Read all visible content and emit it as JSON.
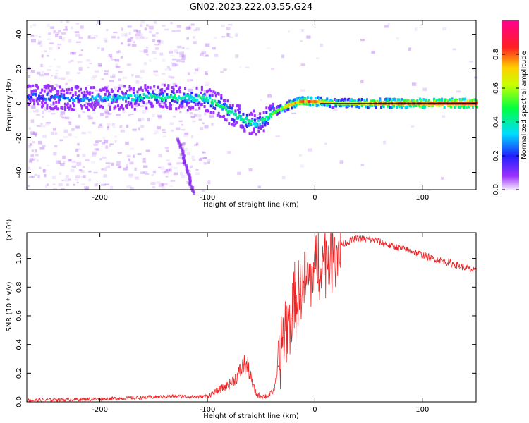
{
  "title": "GN02.2023.222.03.55.G24",
  "colors": {
    "snr_line": "#ee2222",
    "spectrum_track_high": "#ff2020",
    "spectrum_noise": "#8a2be2"
  },
  "chart_data": [
    {
      "type": "heatmap",
      "xlabel": "Height of straight line (km)",
      "ylabel": "Frequency (Hz)",
      "xlim": [
        -268,
        150
      ],
      "ylim": [
        -50,
        48
      ],
      "x_ticks": [
        "-200",
        "-100",
        "0",
        "100"
      ],
      "y_ticks": [
        "40",
        "20",
        "0",
        "-20",
        "-40"
      ],
      "colorbar": {
        "label": "Normalized spectral amplitude",
        "range": [
          0,
          1
        ],
        "ticks": [
          "0.0",
          "0.2",
          "0.4",
          "0.6",
          "0.8"
        ],
        "colormap": "rainbow (violet → blue → cyan → green → yellow → red → magenta)"
      },
      "dominant_frequency_track": {
        "x": [
          -268,
          -220,
          -180,
          -150,
          -120,
          -105,
          -95,
          -85,
          -75,
          -65,
          -55,
          -45,
          -35,
          -25,
          -15,
          -5,
          0,
          20,
          50,
          100,
          150
        ],
        "y": [
          4,
          3,
          3,
          4,
          3,
          3,
          1,
          -3,
          -7,
          -10,
          -12,
          -8,
          -4,
          -1,
          1,
          1,
          1,
          0,
          0,
          0,
          0
        ],
        "amplitude": [
          0.2,
          0.25,
          0.35,
          0.4,
          0.4,
          0.4,
          0.45,
          0.45,
          0.4,
          0.45,
          0.35,
          0.45,
          0.55,
          0.7,
          0.75,
          0.8,
          0.75,
          0.6,
          0.75,
          0.85,
          0.9
        ]
      },
      "grid": false
    },
    {
      "type": "line",
      "xlabel": "Height of straight line (km)",
      "ylabel": "SNR (10 * v/v)",
      "y_multiplier": "(x10⁴)",
      "xlim": [
        -268,
        150
      ],
      "ylim": [
        0,
        1.18
      ],
      "x_ticks": [
        "-200",
        "-100",
        "0",
        "100"
      ],
      "y_ticks": [
        "0.0",
        "0.2",
        "0.4",
        "0.6",
        "0.8",
        "1.0"
      ],
      "series": [
        {
          "x": [
            -268,
            -240,
            -200,
            -160,
            -130,
            -110,
            -100,
            -90,
            -80,
            -72,
            -66,
            -62,
            -58,
            -54,
            -50,
            -46,
            -42,
            -38,
            -34,
            -30,
            -26,
            -22,
            -18,
            -14,
            -10,
            -6,
            0,
            10,
            25,
            40,
            55,
            70,
            90,
            110,
            130,
            150
          ],
          "y": [
            0.01,
            0.015,
            0.02,
            0.03,
            0.04,
            0.035,
            0.04,
            0.08,
            0.12,
            0.18,
            0.26,
            0.24,
            0.12,
            0.05,
            0.04,
            0.04,
            0.05,
            0.08,
            0.25,
            0.45,
            0.52,
            0.58,
            0.7,
            0.75,
            0.8,
            0.85,
            0.93,
            1.0,
            1.1,
            1.14,
            1.13,
            1.09,
            1.05,
            1.0,
            0.96,
            0.91
          ]
        }
      ],
      "grid": false
    }
  ]
}
